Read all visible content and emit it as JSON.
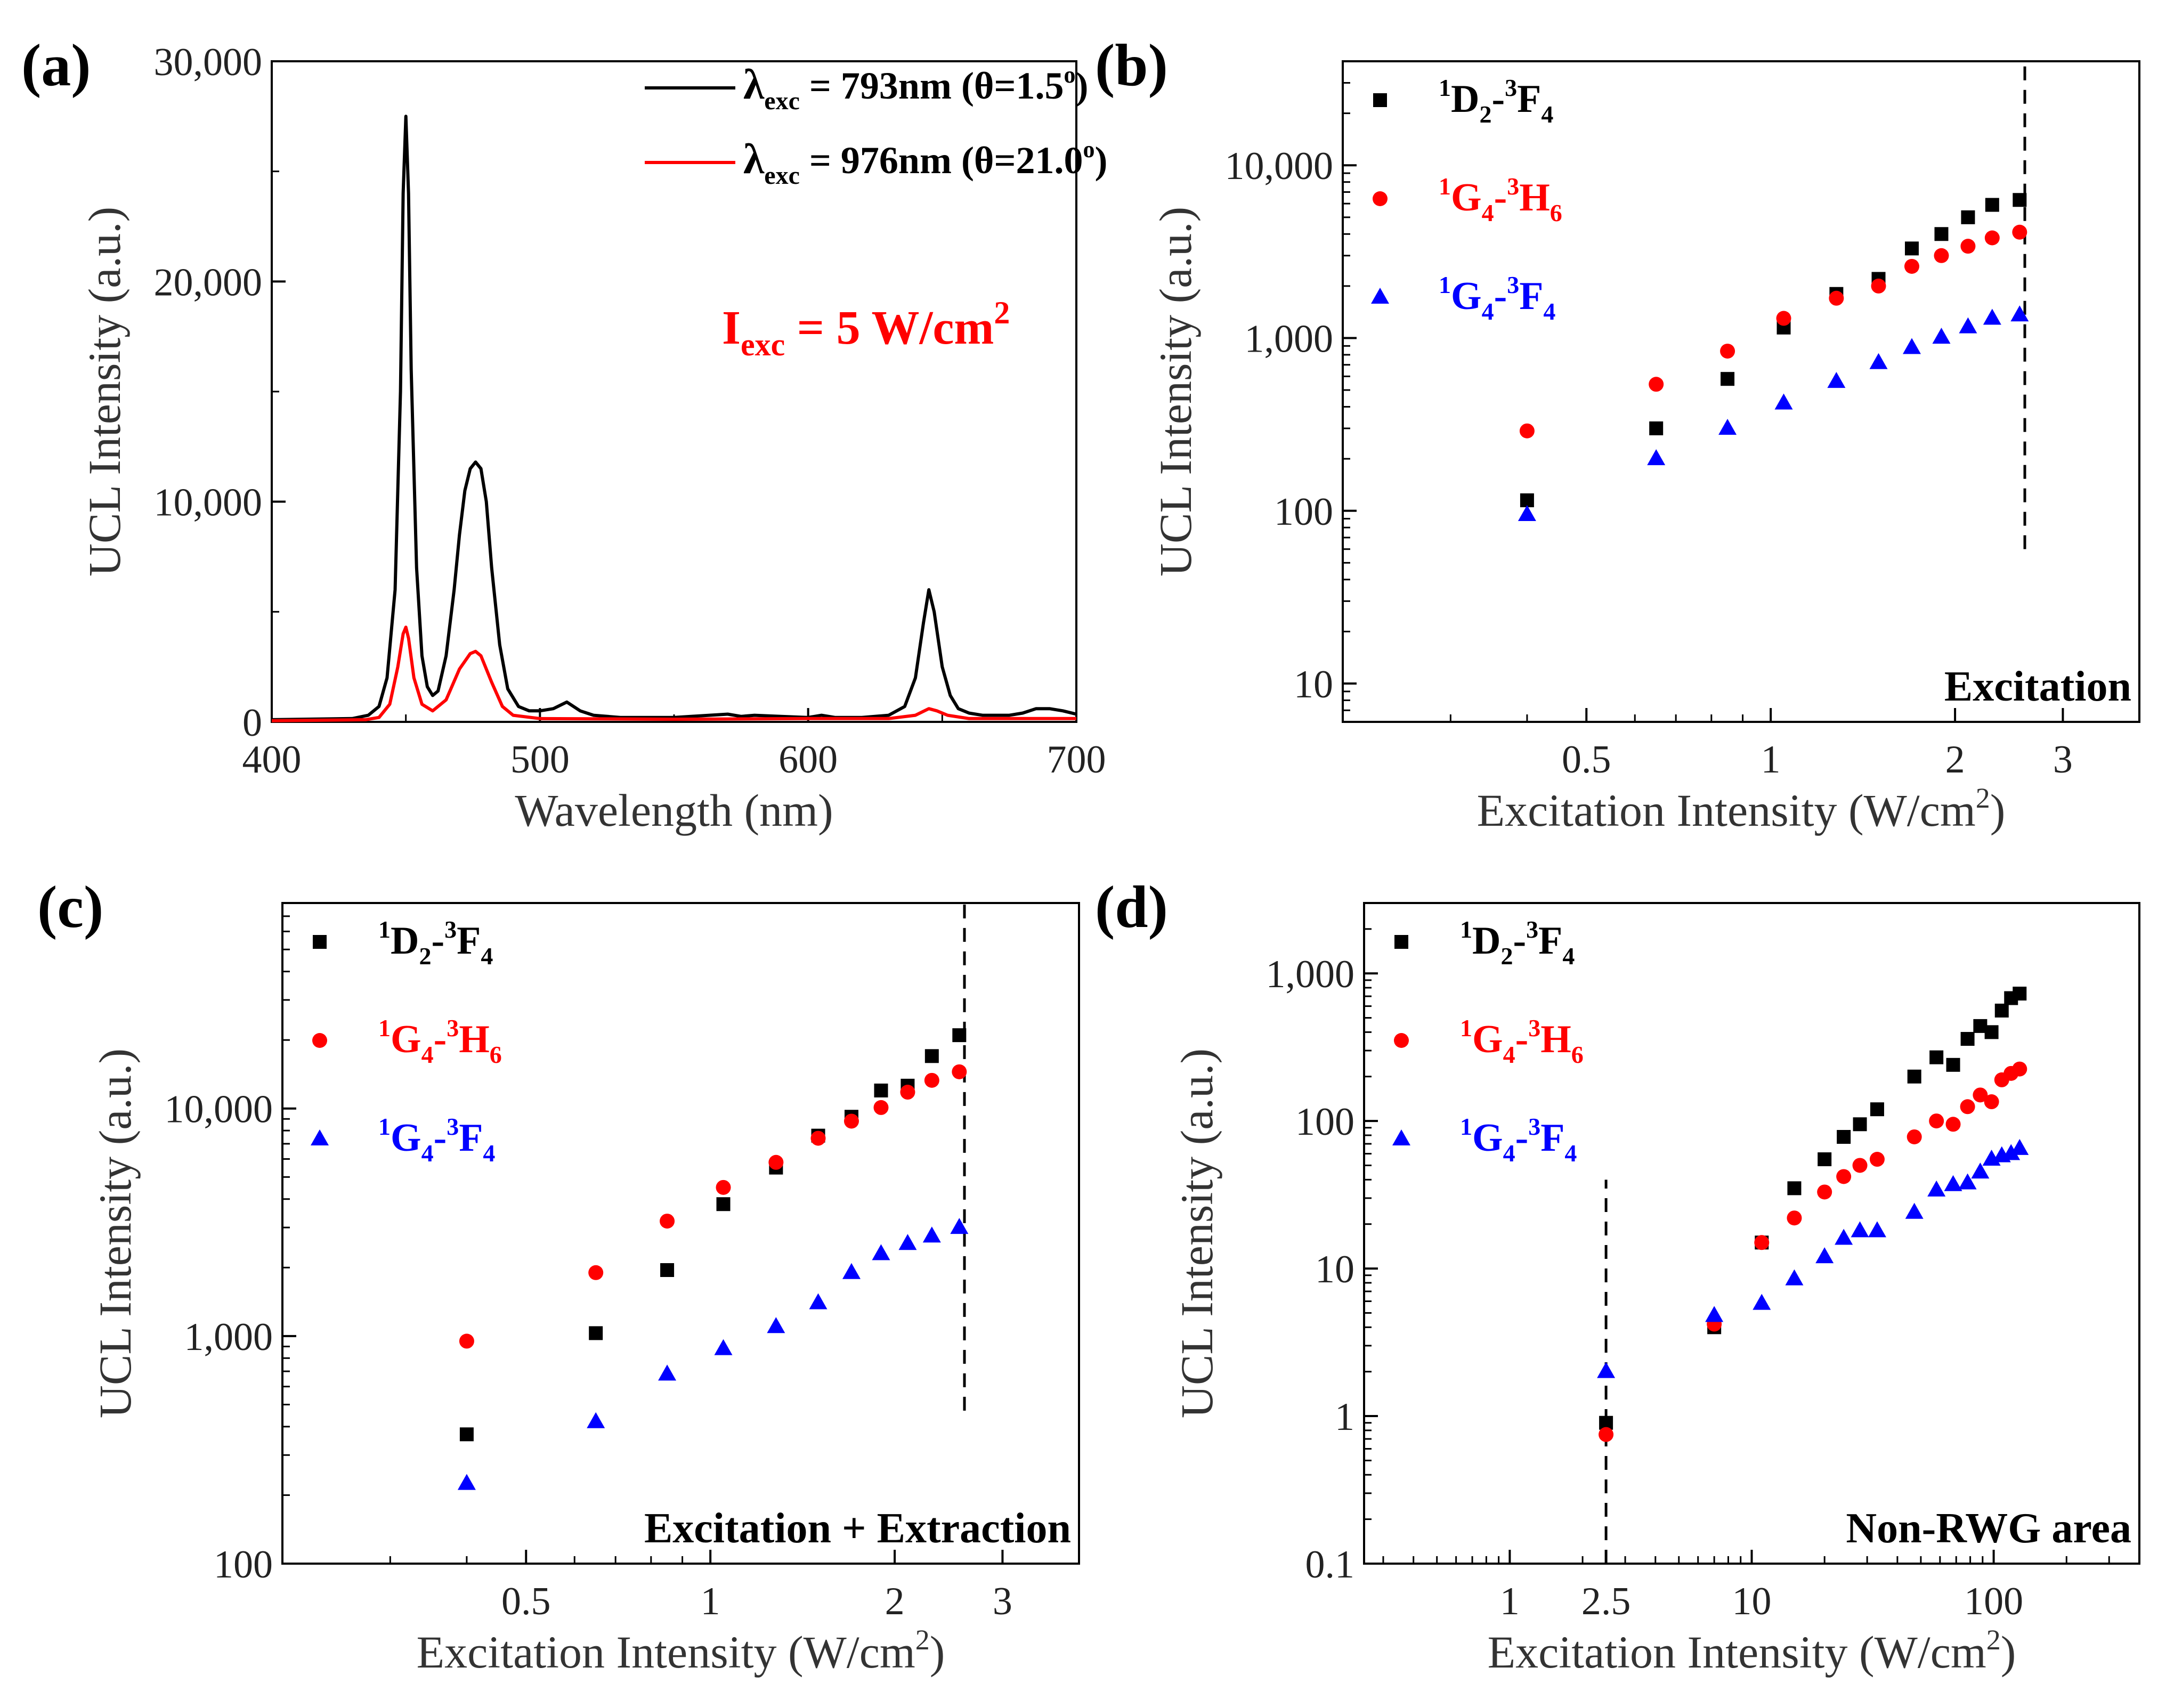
{
  "colors": {
    "black_series": "#000000",
    "red_series": "#ff0000",
    "blue_series": "#0000ff",
    "axis": "#000000",
    "guide": "#000000"
  },
  "chart_data": [
    {
      "id": "a",
      "type": "line",
      "panel_label": "(a)",
      "xlabel": "Wavelength (nm)",
      "ylabel": "UCL Intensity (a.u.)",
      "xlim": [
        400,
        700
      ],
      "ylim": [
        0,
        30000
      ],
      "xticks": [
        400,
        500,
        600,
        700
      ],
      "xtick_labels": [
        "400",
        "500",
        "600",
        "700"
      ],
      "yticks": [
        0,
        10000,
        20000,
        30000
      ],
      "ytick_labels": [
        "0",
        "10,000",
        "20,000",
        "30,000"
      ],
      "annotation": {
        "main": "I",
        "sub": "exc",
        "rest": " = 5 W/cm",
        "sup": "2"
      },
      "series": [
        {
          "name": "λexc = 793nm (θ=1.5°)",
          "legend": {
            "sym": "λ",
            "sub": "exc",
            "rest": " = 793nm (θ=1.5",
            "sup": "o",
            "tail": ")"
          },
          "color": "#000000",
          "x": [
            400,
            430,
            436,
            440,
            443,
            446,
            448,
            449,
            450,
            451,
            452,
            454,
            456,
            458,
            460,
            462,
            465,
            468,
            470,
            472,
            474,
            476,
            478,
            480,
            482,
            485,
            488,
            492,
            496,
            500,
            505,
            510,
            515,
            520,
            530,
            550,
            570,
            575,
            580,
            590,
            600,
            605,
            610,
            620,
            630,
            636,
            640,
            643,
            645,
            647,
            650,
            653,
            656,
            660,
            665,
            670,
            675,
            680,
            685,
            690,
            695,
            700
          ],
          "y": [
            100,
            150,
            300,
            700,
            2000,
            6000,
            15000,
            24000,
            27500,
            24000,
            16000,
            7000,
            3000,
            1600,
            1200,
            1400,
            3000,
            6000,
            8500,
            10500,
            11500,
            11800,
            11500,
            10000,
            7000,
            3500,
            1500,
            700,
            500,
            500,
            600,
            900,
            500,
            300,
            200,
            200,
            350,
            250,
            300,
            250,
            200,
            300,
            200,
            200,
            300,
            700,
            2000,
            4500,
            6000,
            5000,
            2500,
            1200,
            600,
            400,
            300,
            300,
            300,
            400,
            600,
            600,
            500,
            350
          ]
        },
        {
          "name": "λexc = 976nm (θ=21.0°)",
          "legend": {
            "sym": "λ",
            "sub": "exc",
            "rest": " = 976nm (θ=21.0",
            "sup": "o",
            "tail": ")"
          },
          "color": "#ff0000",
          "x": [
            400,
            435,
            440,
            444,
            447,
            449,
            450,
            451,
            453,
            456,
            460,
            465,
            470,
            474,
            476,
            478,
            482,
            486,
            490,
            500,
            550,
            600,
            630,
            640,
            645,
            648,
            652,
            660,
            700
          ],
          "y": [
            50,
            100,
            200,
            800,
            2500,
            4000,
            4300,
            3800,
            2000,
            800,
            500,
            1000,
            2400,
            3100,
            3200,
            3000,
            1800,
            700,
            300,
            150,
            120,
            150,
            150,
            300,
            600,
            500,
            300,
            150,
            150
          ]
        }
      ]
    },
    {
      "id": "b",
      "type": "scatter",
      "panel_label": "(b)",
      "xlabel": {
        "text": "Excitation Intensity (W/cm",
        "sup": "2",
        "tail": ")"
      },
      "ylabel": "UCL Intensity (a.u.)",
      "xscale": "log",
      "yscale": "log",
      "xlim": [
        0.2,
        4
      ],
      "ylim": [
        6,
        40000
      ],
      "xticks": [
        0.5,
        1,
        2,
        3
      ],
      "xtick_labels": [
        "0.5",
        "1",
        "2",
        "3"
      ],
      "yticks": [
        10,
        100,
        1000,
        10000
      ],
      "ytick_labels": [
        "10",
        "100",
        "1,000",
        "10,000"
      ],
      "annotation": "Excitation",
      "vline_x": 2.6,
      "vline_y": [
        60,
        40000
      ],
      "series": [
        {
          "name": "1D2-3F4",
          "marker": "square",
          "color": "#000000",
          "legend": {
            "sa": "1",
            "m1": "D",
            "b1": "2",
            "sb": "3",
            "m2": "F",
            "b2": "4"
          },
          "x": [
            0.4,
            0.65,
            0.85,
            1.05,
            1.28,
            1.5,
            1.7,
            1.9,
            2.1,
            2.3,
            2.55
          ],
          "y": [
            115,
            300,
            580,
            1150,
            1800,
            2200,
            3300,
            4000,
            5000,
            5900,
            6300
          ]
        },
        {
          "name": "1G4-3H6",
          "marker": "circle",
          "color": "#ff0000",
          "legend": {
            "sa": "1",
            "m1": "G",
            "b1": "4",
            "sb": "3",
            "m2": "H",
            "b2": "6"
          },
          "x": [
            0.4,
            0.65,
            0.85,
            1.05,
            1.28,
            1.5,
            1.7,
            1.9,
            2.1,
            2.3,
            2.55
          ],
          "y": [
            290,
            540,
            840,
            1300,
            1700,
            2000,
            2600,
            3000,
            3400,
            3800,
            4100
          ]
        },
        {
          "name": "1G4-3F4",
          "marker": "triangle",
          "color": "#0000ff",
          "legend": {
            "sa": "1",
            "m1": "G",
            "b1": "4",
            "sb": "3",
            "m2": "F",
            "b2": "4"
          },
          "x": [
            0.4,
            0.65,
            0.85,
            1.05,
            1.28,
            1.5,
            1.7,
            1.9,
            2.1,
            2.3,
            2.55
          ],
          "y": [
            95,
            200,
            300,
            420,
            560,
            720,
            880,
            1010,
            1160,
            1300,
            1360
          ]
        }
      ]
    },
    {
      "id": "c",
      "type": "scatter",
      "panel_label": "(c)",
      "xlabel": {
        "text": "Excitation Intensity (W/cm",
        "sup": "2",
        "tail": ")"
      },
      "ylabel": "UCL Intensity (a.u.)",
      "xscale": "log",
      "yscale": "log",
      "xlim": [
        0.2,
        4
      ],
      "ylim": [
        100,
        80000
      ],
      "xticks": [
        0.5,
        1,
        2,
        3
      ],
      "xtick_labels": [
        "0.5",
        "1",
        "2",
        "3"
      ],
      "yticks": [
        100,
        1000,
        10000
      ],
      "ytick_labels": [
        "100",
        "1,000",
        "10,000"
      ],
      "annotation": "Excitation + Extraction",
      "vline_x": 2.6,
      "vline_y": [
        470,
        80000
      ],
      "series": [
        {
          "name": "1D2-3F4",
          "marker": "square",
          "color": "#000000",
          "legend": {
            "sa": "1",
            "m1": "D",
            "b1": "2",
            "sb": "3",
            "m2": "F",
            "b2": "4"
          },
          "x": [
            0.4,
            0.65,
            0.85,
            1.05,
            1.28,
            1.5,
            1.7,
            1.9,
            2.1,
            2.3,
            2.55
          ],
          "y": [
            370,
            1030,
            1950,
            3800,
            5500,
            7600,
            9200,
            12000,
            12600,
            17000,
            21000
          ]
        },
        {
          "name": "1G4-3H6",
          "marker": "circle",
          "color": "#ff0000",
          "legend": {
            "sa": "1",
            "m1": "G",
            "b1": "4",
            "sb": "3",
            "m2": "H",
            "b2": "6"
          },
          "x": [
            0.4,
            0.65,
            0.85,
            1.05,
            1.28,
            1.5,
            1.7,
            1.9,
            2.1,
            2.3,
            2.55
          ],
          "y": [
            950,
            1900,
            3200,
            4500,
            5800,
            7400,
            8800,
            10100,
            11800,
            13300,
            14500
          ]
        },
        {
          "name": "1G4-3F4",
          "marker": "triangle",
          "color": "#0000ff",
          "legend": {
            "sa": "1",
            "m1": "G",
            "b1": "4",
            "sb": "3",
            "m2": "F",
            "b2": "4"
          },
          "x": [
            0.4,
            0.65,
            0.85,
            1.05,
            1.28,
            1.5,
            1.7,
            1.9,
            2.1,
            2.3,
            2.55
          ],
          "y": [
            225,
            420,
            680,
            880,
            1100,
            1400,
            1900,
            2300,
            2550,
            2750,
            3000
          ]
        }
      ]
    },
    {
      "id": "d",
      "type": "scatter",
      "panel_label": "(d)",
      "xlabel": {
        "text": "Excitation Intensity (W/cm",
        "sup": "2",
        "tail": ")"
      },
      "ylabel": "UCL Intensity (a.u.)",
      "xscale": "log",
      "yscale": "log",
      "xlim": [
        0.25,
        400
      ],
      "ylim": [
        0.1,
        3000
      ],
      "xticks": [
        1,
        2.5,
        10,
        100
      ],
      "xtick_labels": [
        "1",
        "2.5",
        "10",
        "100"
      ],
      "yticks": [
        0.1,
        1,
        10,
        100,
        1000
      ],
      "ytick_labels": [
        "0.1",
        "1",
        "10",
        "100",
        "1,000"
      ],
      "annotation": "Non-RWG area",
      "vline_x": 2.5,
      "vline_y": [
        0.1,
        40
      ],
      "series": [
        {
          "name": "1D2-3F4",
          "marker": "square",
          "color": "#000000",
          "legend": {
            "sa": "1",
            "m1": "D",
            "b1": "2",
            "sb": "3",
            "m2": "F",
            "b2": "4"
          },
          "x": [
            2.5,
            7,
            11,
            15,
            20,
            24,
            28,
            33,
            47,
            58,
            68,
            78,
            88,
            98,
            108,
            118,
            128
          ],
          "y": [
            0.9,
            4.0,
            15,
            35,
            55,
            78,
            95,
            120,
            200,
            270,
            240,
            360,
            440,
            400,
            560,
            680,
            730
          ]
        },
        {
          "name": "1G4-3H6",
          "marker": "circle",
          "color": "#ff0000",
          "legend": {
            "sa": "1",
            "m1": "G",
            "b1": "4",
            "sb": "3",
            "m2": "H",
            "b2": "6"
          },
          "x": [
            2.5,
            7,
            11,
            15,
            20,
            24,
            28,
            33,
            47,
            58,
            68,
            78,
            88,
            98,
            108,
            118,
            128
          ],
          "y": [
            0.75,
            4.2,
            15,
            22,
            33,
            42,
            50,
            55,
            78,
            100,
            95,
            125,
            150,
            135,
            190,
            210,
            225
          ]
        },
        {
          "name": "1G4-3F4",
          "marker": "triangle",
          "color": "#0000ff",
          "legend": {
            "sa": "1",
            "m1": "G",
            "b1": "4",
            "sb": "3",
            "m2": "F",
            "b2": "4"
          },
          "x": [
            2.5,
            7,
            11,
            15,
            20,
            24,
            28,
            33,
            47,
            58,
            68,
            78,
            88,
            98,
            108,
            118,
            128
          ],
          "y": [
            2.0,
            4.8,
            5.8,
            8.5,
            12,
            16,
            18,
            18,
            24,
            34,
            37,
            38,
            45,
            55,
            58,
            60,
            65
          ]
        }
      ]
    }
  ]
}
